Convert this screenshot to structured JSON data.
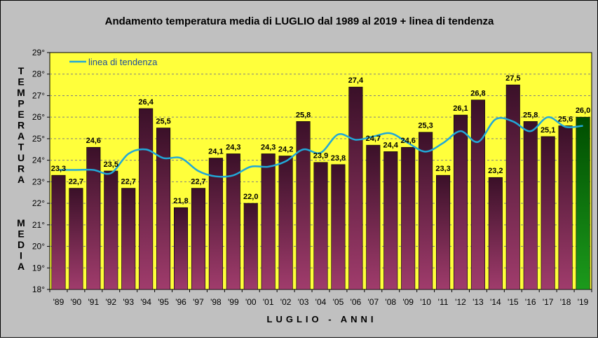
{
  "chart_data": {
    "type": "bar",
    "title": "Andamento temperatura media di LUGLIO dal 1989 al 2019 + linea di tendenza",
    "xlabel": "LUGLIO - ANNI",
    "ylabel_words": [
      "TEMPERATURA",
      "MEDIA"
    ],
    "ylim": [
      18,
      29
    ],
    "y_ticks": [
      "18°",
      "19°",
      "20°",
      "21°",
      "22°",
      "23°",
      "24°",
      "25°",
      "26°",
      "27°",
      "28°",
      "29°"
    ],
    "grid": true,
    "legend": {
      "label": "linea di tendenza",
      "position": "top-left"
    },
    "categories": [
      "'89",
      "'90",
      "'91",
      "'92",
      "'93",
      "'94",
      "'95",
      "'96",
      "'97",
      "'98",
      "'99",
      "'00",
      "'01",
      "'02",
      "'03",
      "'04",
      "'05",
      "'06",
      "'07",
      "'08",
      "'09",
      "'10",
      "'11",
      "'12",
      "'13",
      "'14",
      "'15",
      "'16",
      "'17",
      "'18",
      "'19"
    ],
    "values": [
      23.3,
      22.7,
      24.6,
      23.5,
      22.7,
      26.4,
      25.5,
      21.8,
      22.7,
      24.1,
      24.3,
      22.0,
      24.3,
      24.2,
      25.8,
      23.9,
      23.8,
      27.4,
      24.7,
      24.4,
      24.6,
      25.3,
      23.3,
      26.1,
      26.8,
      23.2,
      27.5,
      25.8,
      25.1,
      25.6,
      26.0
    ],
    "value_labels": [
      "23,3",
      "22,7",
      "24,6",
      "23,5",
      "22,7",
      "26,4",
      "25,5",
      "21,8",
      "22,7",
      "24,1",
      "24,3",
      "22,0",
      "24,3",
      "24,2",
      "25,8",
      "23,9",
      "23,8",
      "27,4",
      "24,7",
      "24,4",
      "24,6",
      "25,3",
      "23,3",
      "26,1",
      "26,8",
      "23,2",
      "27,5",
      "25,8",
      "25,1",
      "25,6",
      "26,0"
    ],
    "trend": [
      23.55,
      23.55,
      23.55,
      23.4,
      24.3,
      24.5,
      24.1,
      24.1,
      23.5,
      23.25,
      23.3,
      23.7,
      23.7,
      23.95,
      24.5,
      24.35,
      25.2,
      24.95,
      25.1,
      25.25,
      24.8,
      24.4,
      24.8,
      25.35,
      24.85,
      25.9,
      25.8,
      25.35,
      26.0,
      25.55,
      25.6
    ],
    "colors": {
      "plot_bg": "#ffff3b",
      "frame_bg": "#c0c0c0",
      "bar_top": "#3a1028",
      "bar_bottom": "#a03c6c",
      "last_bar_top": "#004d00",
      "last_bar_bottom": "#1c9a1c",
      "trend": "#21a8d8",
      "grid": "#808080"
    }
  }
}
